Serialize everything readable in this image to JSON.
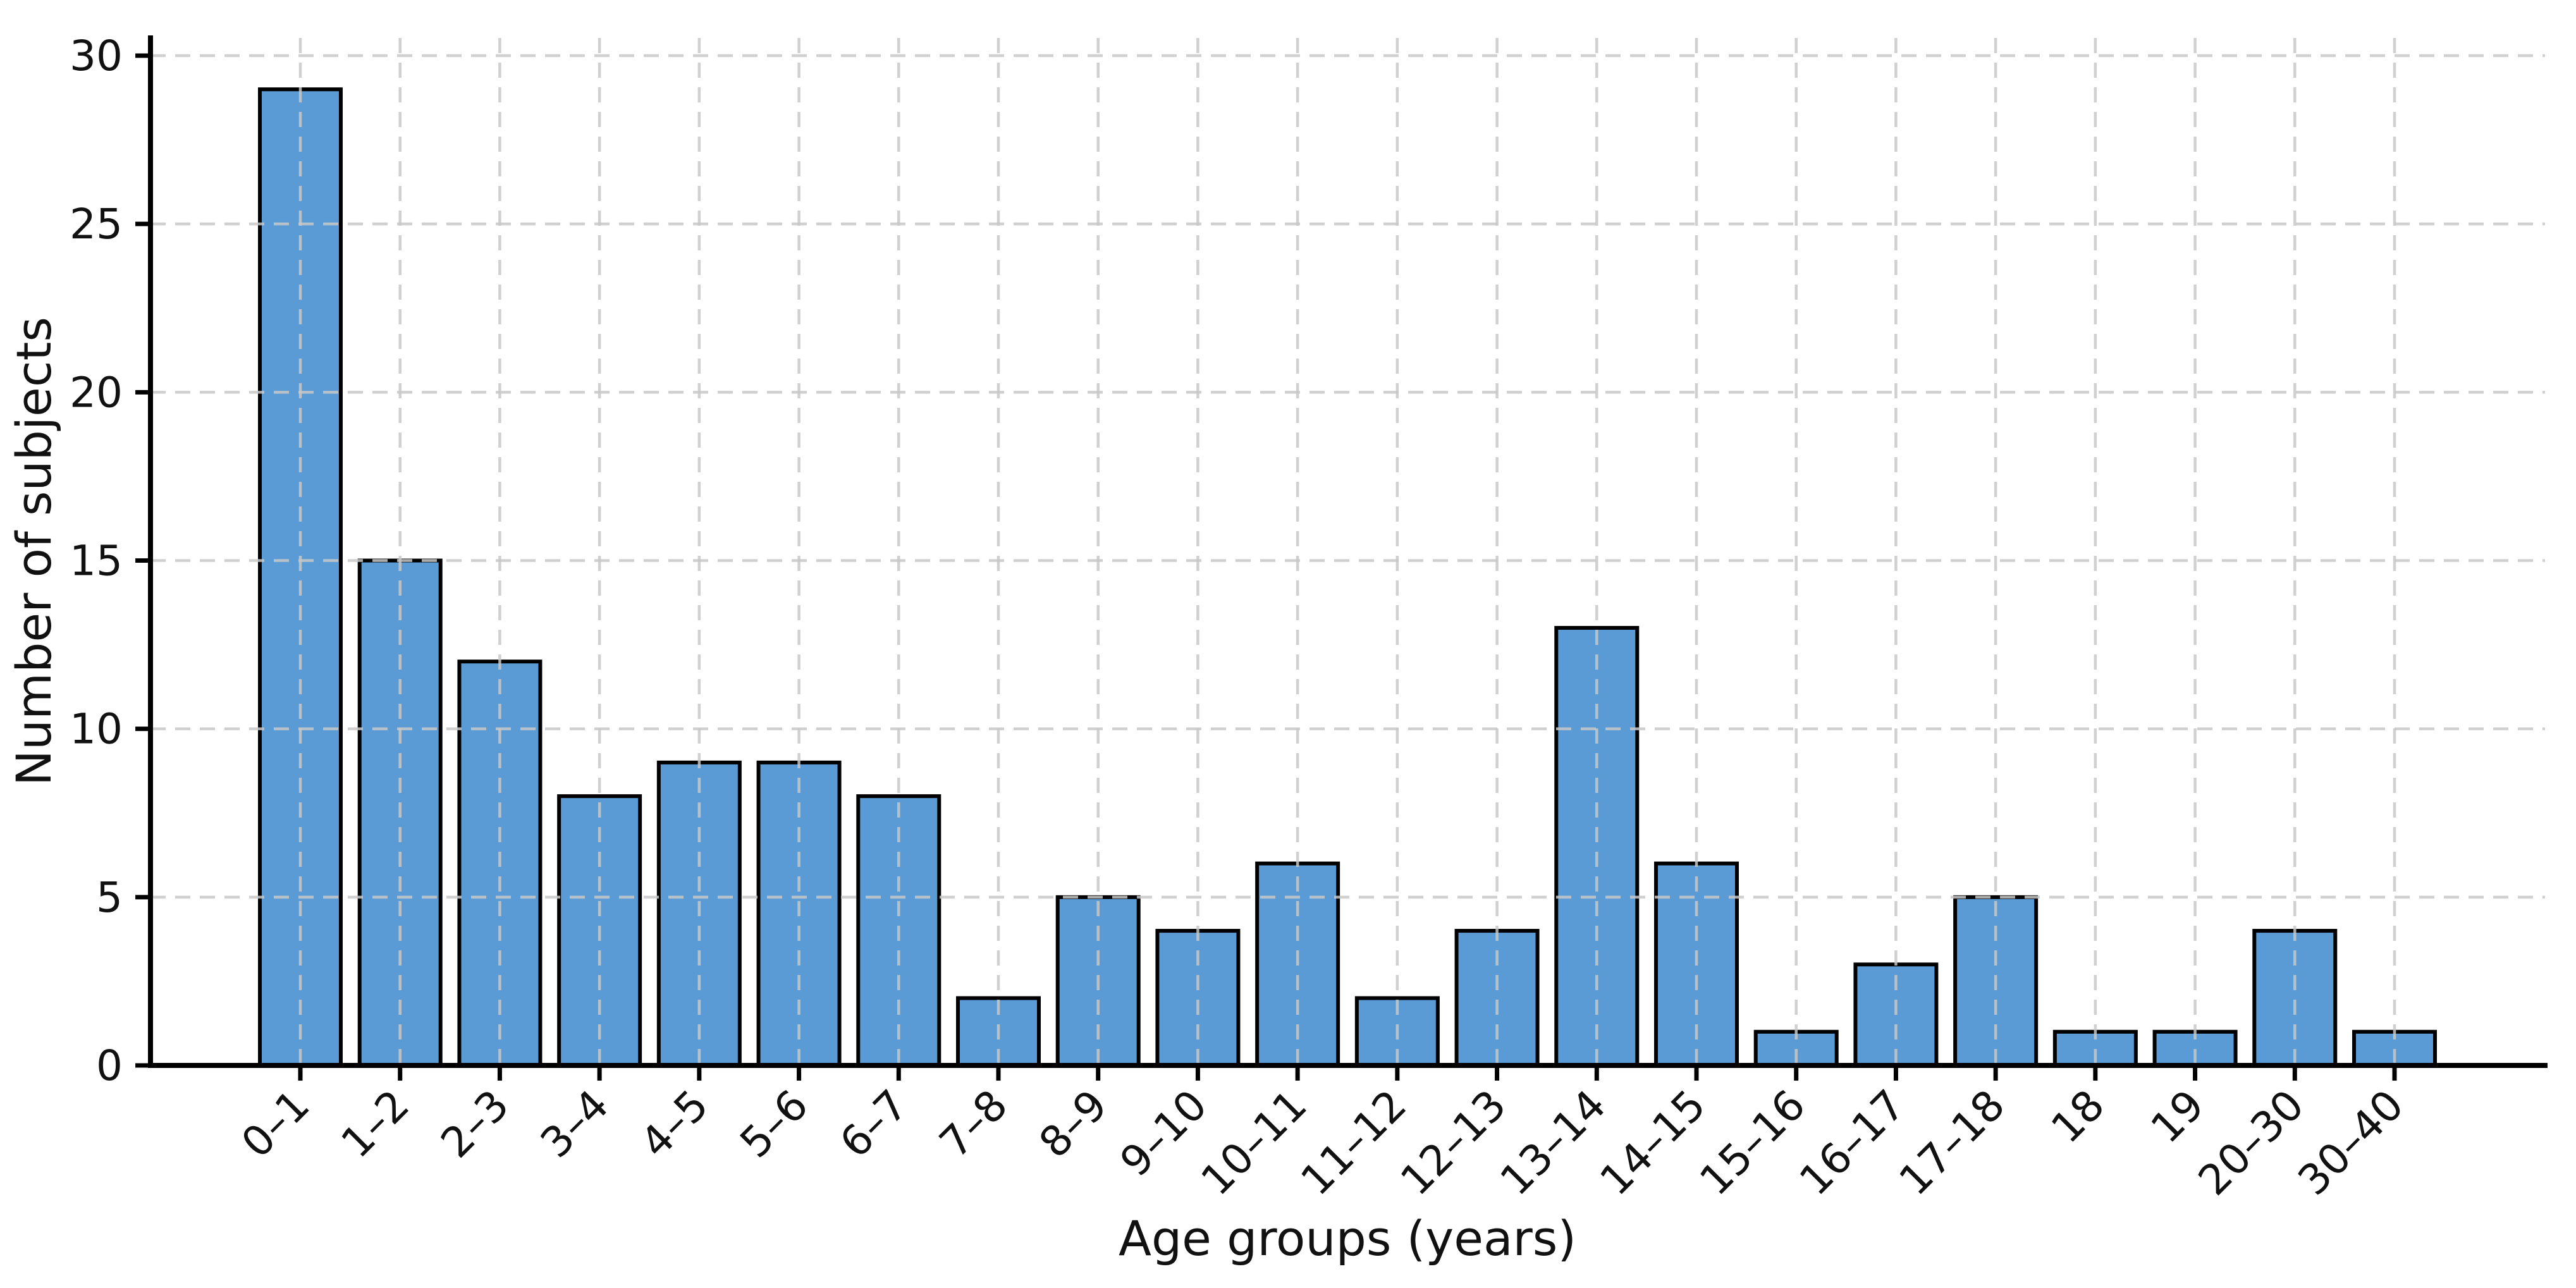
{
  "chart_data": {
    "type": "bar",
    "title": "",
    "xlabel": "Age groups (years)",
    "ylabel": "Number of subjects",
    "categories": [
      "0–1",
      "1–2",
      "2–3",
      "3–4",
      "4–5",
      "5–6",
      "6–7",
      "7–8",
      "8–9",
      "9–10",
      "10–11",
      "11–12",
      "12–13",
      "13–14",
      "14–15",
      "15–16",
      "16–17",
      "17–18",
      "18",
      "19",
      "20–30",
      "30–40"
    ],
    "values": [
      29,
      15,
      12,
      8,
      9,
      9,
      8,
      2,
      5,
      4,
      6,
      2,
      4,
      13,
      6,
      1,
      3,
      5,
      1,
      1,
      4,
      1
    ],
    "yticks": [
      0,
      5,
      10,
      15,
      20,
      25,
      30
    ],
    "ylim": [
      0,
      30.5
    ],
    "grid": "dashed gridlines on both axes, drawn over bars",
    "legend_position": "none",
    "colors": {
      "bar_fill": "#5b9bd5",
      "bar_edge": "#000000",
      "grid": "#c8c8c8",
      "axis": "#000000",
      "text": "#111111",
      "background": "#ffffff"
    }
  }
}
